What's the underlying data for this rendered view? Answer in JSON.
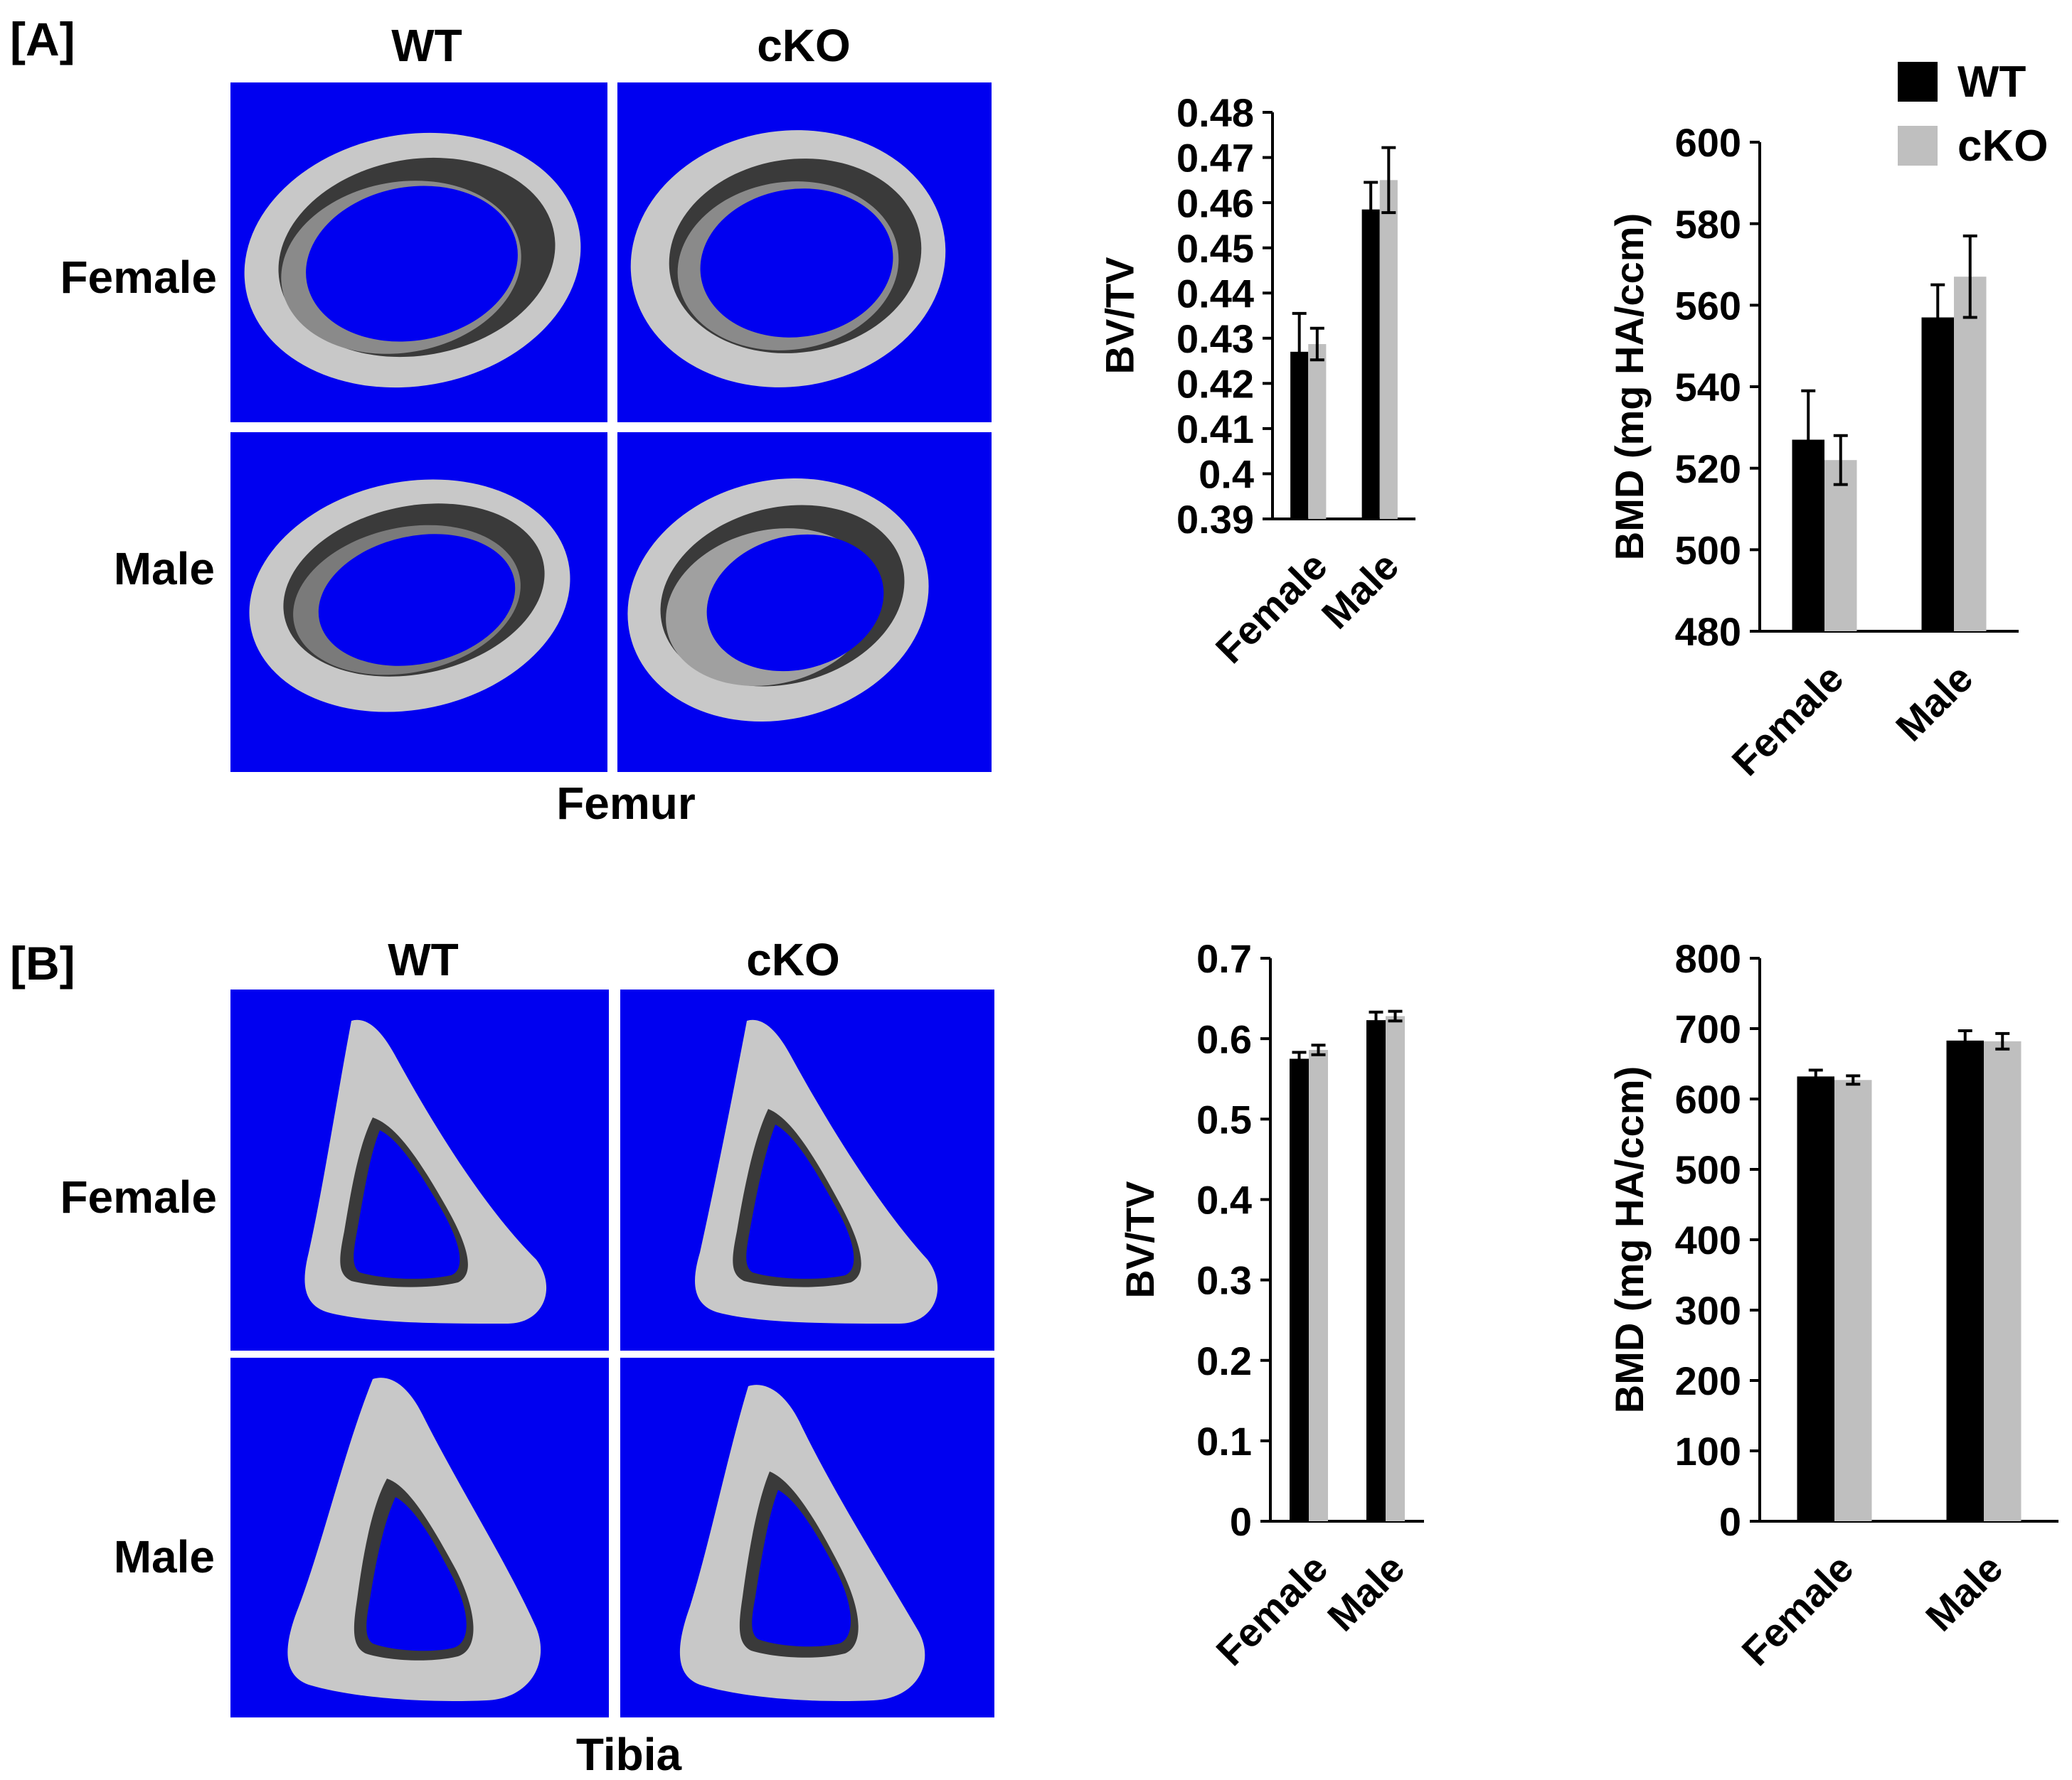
{
  "panels": {
    "A": {
      "label": "[A]",
      "col_labels": [
        "WT",
        "cKO"
      ],
      "row_labels": [
        "Female",
        "Male"
      ],
      "bone": "Femur"
    },
    "B": {
      "label": "[B]",
      "col_labels": [
        "WT",
        "cKO"
      ],
      "row_labels": [
        "Female",
        "Male"
      ],
      "bone": "Tibia"
    }
  },
  "legend": {
    "items": [
      {
        "label": "WT",
        "color": "#000000"
      },
      {
        "label": "cKO",
        "color": "#bfbfbf"
      }
    ]
  },
  "colors": {
    "scan_background": "#0000f0",
    "bone": "#c8c8c8",
    "bone_inner": "#3a3a3a",
    "wt": "#000000",
    "cko": "#bfbfbf"
  },
  "chart_data": [
    {
      "id": "A-bvtv",
      "type": "bar",
      "categories": [
        "Female",
        "Male"
      ],
      "series": [
        {
          "name": "WT",
          "values": [
            0.427,
            0.4585
          ],
          "errors": [
            0.0085,
            0.006
          ]
        },
        {
          "name": "cKO",
          "values": [
            0.4287,
            0.465
          ],
          "errors": [
            0.0035,
            0.0072
          ]
        }
      ],
      "ylabel": "BV/TV",
      "ylim": [
        0.39,
        0.48
      ],
      "yticks": [
        "0.39",
        "0.4",
        "0.41",
        "0.42",
        "0.43",
        "0.44",
        "0.45",
        "0.46",
        "0.47",
        "0.48"
      ]
    },
    {
      "id": "A-bmd",
      "type": "bar",
      "categories": [
        "Female",
        "Male"
      ],
      "series": [
        {
          "name": "WT",
          "values": [
            527,
            557
          ],
          "errors": [
            12,
            8
          ]
        },
        {
          "name": "cKO",
          "values": [
            522,
            567
          ],
          "errors": [
            6,
            10
          ]
        }
      ],
      "ylabel": "BMD (mg HA/ccm)",
      "ylim": [
        480,
        600
      ],
      "yticks": [
        "480",
        "500",
        "520",
        "540",
        "560",
        "580",
        "600"
      ]
    },
    {
      "id": "B-bvtv",
      "type": "bar",
      "categories": [
        "Female",
        "Male"
      ],
      "series": [
        {
          "name": "WT",
          "values": [
            0.575,
            0.623
          ],
          "errors": [
            0.008,
            0.01
          ]
        },
        {
          "name": "cKO",
          "values": [
            0.586,
            0.628
          ],
          "errors": [
            0.006,
            0.006
          ]
        }
      ],
      "ylabel": "BV/TV",
      "ylim": [
        0,
        0.7
      ],
      "yticks": [
        "0",
        "0.1",
        "0.2",
        "0.3",
        "0.4",
        "0.5",
        "0.6",
        "0.7"
      ]
    },
    {
      "id": "B-bmd",
      "type": "bar",
      "categories": [
        "Female",
        "Male"
      ],
      "series": [
        {
          "name": "WT",
          "values": [
            632,
            683
          ],
          "errors": [
            9,
            14
          ]
        },
        {
          "name": "cKO",
          "values": [
            627,
            682
          ],
          "errors": [
            6,
            11
          ]
        }
      ],
      "ylabel": "BMD (mg HA/ccm)",
      "ylim": [
        0,
        800
      ],
      "yticks": [
        "0",
        "100",
        "200",
        "300",
        "400",
        "500",
        "600",
        "700",
        "800"
      ]
    }
  ]
}
